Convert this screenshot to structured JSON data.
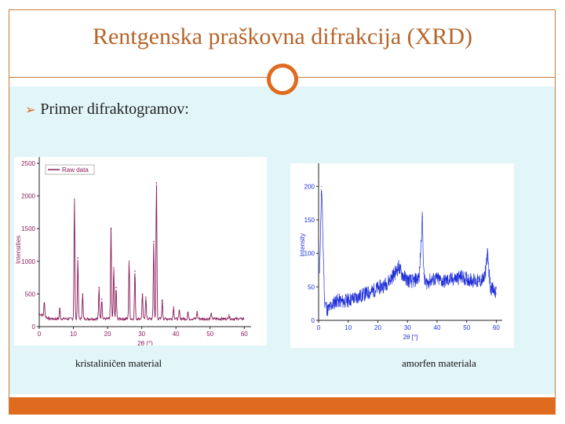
{
  "slide": {
    "title": "Rentgenska praškovna difrakcija (XRD)",
    "bullet": "Primer difraktogramov:",
    "accent_color": "#e06a1e",
    "title_color": "#b5652a",
    "background_color": "#e2f5f8"
  },
  "captions": {
    "left": "kristaliničen material",
    "right": "amorfen materiala"
  },
  "chart_data": [
    {
      "type": "line",
      "title": "",
      "xlabel": "2θ (°)",
      "ylabel": "Intensities",
      "legend": "Raw data",
      "legend_position": "top-left",
      "color": "#8b1a5a",
      "xlim": [
        0,
        62
      ],
      "ylim": [
        0,
        2500
      ],
      "xticks": [
        0,
        10,
        20,
        30,
        40,
        50,
        60
      ],
      "yticks": [
        0,
        500,
        1000,
        1500,
        2000,
        2500
      ],
      "baseline": 120,
      "peaks": [
        {
          "x": 1.5,
          "y": 350
        },
        {
          "x": 6.0,
          "y": 280
        },
        {
          "x": 10.3,
          "y": 1950
        },
        {
          "x": 11.3,
          "y": 1050
        },
        {
          "x": 12.7,
          "y": 500
        },
        {
          "x": 17.5,
          "y": 600
        },
        {
          "x": 18.3,
          "y": 420
        },
        {
          "x": 21.0,
          "y": 1500
        },
        {
          "x": 21.8,
          "y": 900
        },
        {
          "x": 22.5,
          "y": 600
        },
        {
          "x": 26.3,
          "y": 1000
        },
        {
          "x": 28.0,
          "y": 850
        },
        {
          "x": 30.2,
          "y": 500
        },
        {
          "x": 31.2,
          "y": 450
        },
        {
          "x": 33.5,
          "y": 1300
        },
        {
          "x": 34.3,
          "y": 2200
        },
        {
          "x": 36.0,
          "y": 400
        },
        {
          "x": 39.3,
          "y": 300
        },
        {
          "x": 41.0,
          "y": 250
        },
        {
          "x": 43.5,
          "y": 220
        },
        {
          "x": 46.2,
          "y": 230
        },
        {
          "x": 50.3,
          "y": 200
        },
        {
          "x": 55.5,
          "y": 180
        }
      ]
    },
    {
      "type": "line",
      "title": "",
      "xlabel": "2θ [°]",
      "ylabel": "Intensity",
      "color": "#1f2fd8",
      "xlim": [
        0,
        62
      ],
      "ylim": [
        0,
        225
      ],
      "xticks": [
        0,
        10,
        20,
        30,
        40,
        50,
        60
      ],
      "yticks": [
        0,
        50,
        100,
        150,
        200
      ],
      "x": [
        0,
        1,
        2,
        3,
        4,
        5,
        6,
        8,
        10,
        12,
        14,
        16,
        18,
        20,
        22,
        24,
        26,
        27,
        28,
        29,
        30,
        32,
        34,
        35,
        35.5,
        36,
        37,
        38,
        40,
        42,
        44,
        46,
        48,
        50,
        52,
        54,
        56,
        57,
        58,
        59,
        60
      ],
      "y": [
        10,
        200,
        30,
        15,
        20,
        25,
        30,
        28,
        30,
        33,
        36,
        40,
        43,
        48,
        52,
        60,
        72,
        80,
        70,
        65,
        60,
        58,
        65,
        155,
        70,
        55,
        58,
        60,
        62,
        58,
        60,
        62,
        65,
        62,
        60,
        58,
        62,
        100,
        50,
        45,
        40
      ]
    }
  ]
}
